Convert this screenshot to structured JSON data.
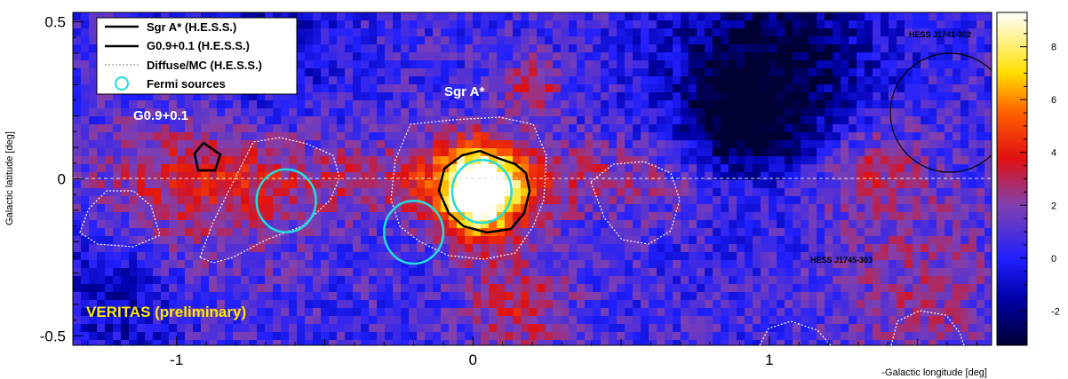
{
  "chart_data": {
    "type": "heatmap",
    "title": "",
    "xlabel": "-Galactic longitude [deg]",
    "ylabel": "Galactic latitude [deg]",
    "xlim": [
      -1.35,
      1.75
    ],
    "ylim": [
      -0.53,
      0.53
    ],
    "x_ticks": [
      -1,
      0,
      1
    ],
    "x_tick_labels": [
      "-1",
      "0",
      "1"
    ],
    "y_ticks": [
      0.5,
      0,
      -0.5
    ],
    "y_tick_labels": [
      "0.5",
      "0",
      "-0.5"
    ],
    "colorbar": {
      "range": [
        -3.3,
        9.3
      ],
      "ticks": [
        -2,
        0,
        2,
        4,
        6,
        8
      ],
      "tick_labels": [
        "-2",
        "0",
        "2",
        "4",
        "6",
        "8"
      ],
      "colors": [
        "#000033",
        "#0000a8",
        "#2020ff",
        "#8040b0",
        "#e01010",
        "#ff6000",
        "#ffe000",
        "#ffffff"
      ]
    },
    "legend": {
      "placement": "top-left",
      "entries": [
        {
          "label": "Sgr A* (H.E.S.S.)",
          "style": "solid"
        },
        {
          "label": "G0.9+0.1 (H.E.S.S.)",
          "style": "solid"
        },
        {
          "label": "Diffuse/MC (H.E.S.S.)",
          "style": "dotted"
        },
        {
          "label": "Fermi sources",
          "style": "cyan-circle"
        }
      ]
    },
    "annotations": {
      "sgra": "Sgr A*",
      "g09": "G0.9+0.1",
      "hess1741": "HESS J1741-302",
      "hess1745": "HESS J1745-303",
      "veritas": "VERITAS (preliminary)"
    },
    "peak": {
      "x": 0.02,
      "y": -0.04,
      "value": 9
    },
    "fermi_sources": [
      {
        "x": 0.03,
        "y": -0.04,
        "r": 0.1
      },
      {
        "x": -0.63,
        "y": -0.07,
        "r": 0.1
      },
      {
        "x": -0.2,
        "y": -0.17,
        "r": 0.1
      }
    ],
    "hess_sources": [
      {
        "name": "Sgr A*",
        "x": 0.02,
        "y": -0.05,
        "r": 0.14
      },
      {
        "name": "G0.9+0.1",
        "x": -0.87,
        "y": 0.07,
        "r": 0.04
      },
      {
        "name": "HESS J1741-302",
        "x": 1.6,
        "y": 0.2,
        "r": 0.2
      }
    ],
    "grid": false,
    "zero_line": true
  }
}
